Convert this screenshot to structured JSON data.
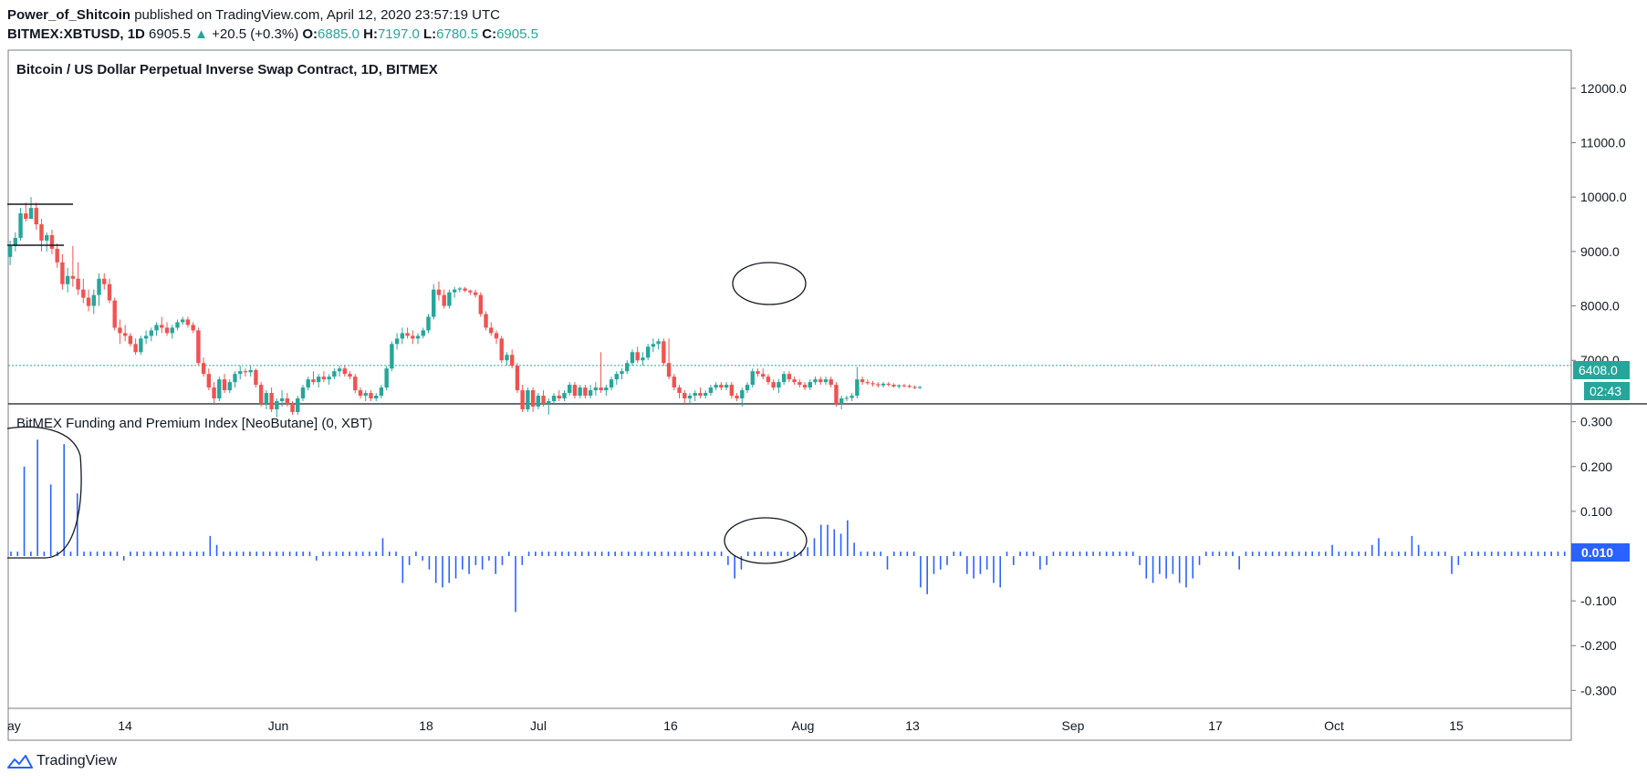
{
  "header": {
    "author": "Power_of_Shitcoin",
    "published_text": "published on TradingView.com, April 12, 2020 23:57:19 UTC",
    "symbol": "BITMEX:XBTUSD",
    "interval": "1D",
    "last": "6905.5",
    "change": "+20.5 (+0.3%)",
    "o_label": "O:",
    "o": "6885.0",
    "h_label": "H:",
    "h": "7197.0",
    "l_label": "L:",
    "l": "6780.5",
    "c_label": "C:",
    "c": "6905.5",
    "up_arrow": "▲"
  },
  "footer": {
    "brand": "TradingView",
    "logo_icon": "tradingview-logo-icon"
  },
  "colors": {
    "up": "#26a69a",
    "down": "#ef5350",
    "funding": "#2962ff",
    "last_line": "#26a69a"
  },
  "chart_data": [
    {
      "type": "candlestick",
      "title": "Bitcoin / US Dollar Perpetual Inverse Swap Contract, 1D, BITMEX",
      "ylim": [
        6200,
        12700
      ],
      "y_ticks": [
        "7000.0",
        "8000.0",
        "9000.0",
        "10000.0",
        "11000.0",
        "12000.0"
      ],
      "last_price_label": "6408.0",
      "countdown_label": "02:43",
      "dotted_line_value": 6905,
      "x_tick_labels": [
        "ay",
        "14",
        "Jun",
        "18",
        "Jul",
        "16",
        "Aug",
        "13",
        "Sep",
        "17",
        "Oct",
        "15"
      ],
      "start_date": "2019-05-10",
      "ohlc": [
        [
          8900,
          9200,
          8750,
          9100
        ],
        [
          9100,
          9350,
          9000,
          9250
        ],
        [
          9250,
          9800,
          9200,
          9700
        ],
        [
          9700,
          9900,
          9550,
          9600
        ],
        [
          9600,
          10000,
          9650,
          9800
        ],
        [
          9800,
          9900,
          9400,
          9500
        ],
        [
          9500,
          9600,
          9000,
          9200
        ],
        [
          9200,
          9350,
          9000,
          9300
        ],
        [
          9300,
          9400,
          8950,
          9050
        ],
        [
          9050,
          9150,
          8700,
          8800
        ],
        [
          8800,
          8950,
          8300,
          8400
        ],
        [
          8400,
          8700,
          8250,
          8550
        ],
        [
          8550,
          9100,
          8350,
          8500
        ],
        [
          8500,
          8800,
          8200,
          8300
        ],
        [
          8300,
          8500,
          8050,
          8150
        ],
        [
          8150,
          8300,
          7900,
          8000
        ],
        [
          8000,
          8300,
          7850,
          8200
        ],
        [
          8200,
          8600,
          8000,
          8500
        ],
        [
          8500,
          8600,
          8300,
          8400
        ],
        [
          8400,
          8500,
          8050,
          8100
        ],
        [
          8100,
          8150,
          7550,
          7600
        ],
        [
          7600,
          7750,
          7300,
          7500
        ],
        [
          7500,
          7650,
          7350,
          7450
        ],
        [
          7450,
          7500,
          7250,
          7300
        ],
        [
          7300,
          7400,
          7100,
          7150
        ],
        [
          7150,
          7450,
          7100,
          7400
        ],
        [
          7400,
          7550,
          7300,
          7450
        ],
        [
          7450,
          7600,
          7350,
          7550
        ],
        [
          7550,
          7700,
          7450,
          7650
        ],
        [
          7650,
          7800,
          7500,
          7600
        ],
        [
          7600,
          7700,
          7450,
          7500
        ],
        [
          7500,
          7650,
          7400,
          7600
        ],
        [
          7600,
          7750,
          7550,
          7700
        ],
        [
          7700,
          7800,
          7650,
          7750
        ],
        [
          7750,
          7800,
          7600,
          7650
        ],
        [
          7650,
          7700,
          7500,
          7550
        ],
        [
          7550,
          7600,
          6900,
          6950
        ],
        [
          6950,
          7050,
          6700,
          6750
        ],
        [
          6750,
          6850,
          6450,
          6500
        ],
        [
          6500,
          6600,
          6200,
          6300
        ],
        [
          6300,
          6700,
          6250,
          6650
        ],
        [
          6650,
          6750,
          6400,
          6450
        ],
        [
          6450,
          6650,
          6400,
          6600
        ],
        [
          6600,
          6800,
          6500,
          6750
        ],
        [
          6750,
          6900,
          6650,
          6800
        ],
        [
          6800,
          6850,
          6700,
          6780
        ],
        [
          6780,
          6900,
          6700,
          6820
        ],
        [
          6820,
          6850,
          6500,
          6550
        ],
        [
          6550,
          6600,
          6150,
          6200
        ],
        [
          6200,
          6450,
          6100,
          6400
        ],
        [
          6400,
          6500,
          6050,
          6100
        ],
        [
          6100,
          6300,
          5950,
          6250
        ],
        [
          6250,
          6450,
          6150,
          6300
        ],
        [
          6300,
          6400,
          6150,
          6200
        ],
        [
          6200,
          6250,
          6000,
          6050
        ],
        [
          6050,
          6350,
          6000,
          6300
        ],
        [
          6300,
          6550,
          6250,
          6500
        ],
        [
          6500,
          6700,
          6450,
          6650
        ],
        [
          6650,
          6800,
          6550,
          6600
        ],
        [
          6600,
          6750,
          6500,
          6700
        ],
        [
          6700,
          6800,
          6600,
          6650
        ],
        [
          6650,
          6750,
          6550,
          6700
        ],
        [
          6700,
          6850,
          6650,
          6800
        ],
        [
          6800,
          6900,
          6700,
          6850
        ],
        [
          6850,
          6900,
          6700,
          6750
        ],
        [
          6750,
          6800,
          6650,
          6700
        ],
        [
          6700,
          6750,
          6400,
          6450
        ],
        [
          6450,
          6500,
          6300,
          6350
        ],
        [
          6350,
          6450,
          6250,
          6400
        ],
        [
          6400,
          6450,
          6250,
          6300
        ],
        [
          6300,
          6400,
          6250,
          6350
        ],
        [
          6350,
          6550,
          6300,
          6500
        ],
        [
          6500,
          6900,
          6450,
          6850
        ],
        [
          6850,
          7350,
          6800,
          7300
        ],
        [
          7300,
          7500,
          7200,
          7400
        ],
        [
          7400,
          7600,
          7300,
          7500
        ],
        [
          7500,
          7600,
          7400,
          7450
        ],
        [
          7450,
          7550,
          7300,
          7400
        ],
        [
          7400,
          7500,
          7300,
          7450
        ],
        [
          7450,
          7600,
          7400,
          7550
        ],
        [
          7550,
          7850,
          7500,
          7800
        ],
        [
          7800,
          8400,
          7750,
          8300
        ],
        [
          8300,
          8450,
          8100,
          8200
        ],
        [
          8200,
          8300,
          7950,
          8000
        ],
        [
          8000,
          8300,
          7950,
          8250
        ],
        [
          8250,
          8350,
          8150,
          8300
        ],
        [
          8300,
          8350,
          8250,
          8320
        ],
        [
          8320,
          8350,
          8250,
          8280
        ],
        [
          8280,
          8300,
          8200,
          8250
        ],
        [
          8250,
          8300,
          8150,
          8200
        ],
        [
          8200,
          8250,
          7800,
          7850
        ],
        [
          7850,
          7900,
          7550,
          7600
        ],
        [
          7600,
          7700,
          7450,
          7500
        ],
        [
          7500,
          7550,
          7300,
          7400
        ],
        [
          7400,
          7450,
          6950,
          7000
        ],
        [
          7000,
          7150,
          6900,
          7100
        ],
        [
          7100,
          7200,
          6850,
          6900
        ],
        [
          6900,
          6950,
          6400,
          6450
        ],
        [
          6450,
          6550,
          6050,
          6100
        ],
        [
          6100,
          6500,
          6050,
          6450
        ],
        [
          6450,
          6500,
          6050,
          6150
        ],
        [
          6150,
          6400,
          6100,
          6350
        ],
        [
          6350,
          6450,
          6150,
          6200
        ],
        [
          6200,
          6300,
          6000,
          6250
        ],
        [
          6250,
          6400,
          6200,
          6350
        ],
        [
          6350,
          6450,
          6250,
          6300
        ],
        [
          6300,
          6450,
          6250,
          6400
        ],
        [
          6400,
          6600,
          6350,
          6550
        ],
        [
          6550,
          6600,
          6300,
          6350
        ],
        [
          6350,
          6550,
          6300,
          6500
        ],
        [
          6500,
          6550,
          6300,
          6350
        ],
        [
          6350,
          6550,
          6300,
          6450
        ],
        [
          6450,
          6600,
          6350,
          6500
        ],
        [
          6500,
          7150,
          6400,
          6450
        ],
        [
          6450,
          6550,
          6350,
          6500
        ],
        [
          6500,
          6700,
          6450,
          6650
        ],
        [
          6650,
          6800,
          6550,
          6750
        ],
        [
          6750,
          6850,
          6650,
          6800
        ],
        [
          6800,
          7000,
          6750,
          6950
        ],
        [
          6950,
          7200,
          6900,
          7150
        ],
        [
          7150,
          7250,
          6950,
          7000
        ],
        [
          7000,
          7150,
          6900,
          7050
        ],
        [
          7050,
          7300,
          7000,
          7250
        ],
        [
          7250,
          7400,
          7150,
          7300
        ],
        [
          7300,
          7400,
          7200,
          7350
        ],
        [
          7350,
          7400,
          6900,
          6950
        ],
        [
          6950,
          7400,
          6650,
          6700
        ],
        [
          6700,
          6750,
          6450,
          6500
        ],
        [
          6500,
          6550,
          6300,
          6400
        ],
        [
          6400,
          6450,
          6200,
          6300
        ],
        [
          6300,
          6400,
          6200,
          6350
        ],
        [
          6350,
          6450,
          6250,
          6400
        ],
        [
          6400,
          6500,
          6300,
          6350
        ],
        [
          6350,
          6450,
          6300,
          6400
        ],
        [
          6400,
          6550,
          6350,
          6500
        ],
        [
          6500,
          6600,
          6450,
          6550
        ],
        [
          6550,
          6600,
          6450,
          6500
        ],
        [
          6500,
          6600,
          6450,
          6550
        ],
        [
          6550,
          6600,
          6300,
          6350
        ],
        [
          6350,
          6400,
          6250,
          6300
        ],
        [
          6300,
          6500,
          6150,
          6450
        ],
        [
          6450,
          6600,
          6400,
          6550
        ],
        [
          6550,
          6850,
          6500,
          6800
        ],
        [
          6800,
          6850,
          6700,
          6750
        ],
        [
          6750,
          6850,
          6650,
          6700
        ],
        [
          6700,
          6750,
          6550,
          6600
        ],
        [
          6600,
          6650,
          6450,
          6500
        ],
        [
          6500,
          6650,
          6400,
          6600
        ],
        [
          6600,
          6800,
          6550,
          6750
        ],
        [
          6750,
          6800,
          6600,
          6650
        ],
        [
          6650,
          6700,
          6550,
          6600
        ],
        [
          6600,
          6650,
          6500,
          6550
        ],
        [
          6550,
          6600,
          6450,
          6500
        ],
        [
          6500,
          6650,
          6450,
          6600
        ],
        [
          6600,
          6700,
          6550,
          6650
        ],
        [
          6650,
          6700,
          6550,
          6600
        ],
        [
          6600,
          6700,
          6550,
          6650
        ],
        [
          6650,
          6700,
          6500,
          6550
        ],
        [
          6550,
          6600,
          6150,
          6200
        ],
        [
          6200,
          6350,
          6100,
          6300
        ],
        [
          6300,
          6350,
          6250,
          6310
        ],
        [
          6310,
          6400,
          6250,
          6350
        ],
        [
          6350,
          6880,
          6300,
          6650
        ],
        [
          6650,
          6700,
          6550,
          6600
        ],
        [
          6600,
          6650,
          6550,
          6580
        ],
        [
          6580,
          6620,
          6520,
          6560
        ],
        [
          6560,
          6600,
          6500,
          6540
        ],
        [
          6540,
          6600,
          6500,
          6570
        ],
        [
          6570,
          6600,
          6520,
          6550
        ],
        [
          6550,
          6580,
          6500,
          6520
        ],
        [
          6520,
          6560,
          6480,
          6540
        ],
        [
          6540,
          6570,
          6500,
          6530
        ],
        [
          6530,
          6560,
          6490,
          6510
        ],
        [
          6510,
          6540,
          6470,
          6500
        ],
        [
          6500,
          6530,
          6470,
          6510
        ]
      ]
    },
    {
      "type": "bar",
      "title": "BitMEX Funding and Premium Index [NeoButane] (0, XBT)",
      "ylim": [
        -0.34,
        0.34
      ],
      "y_ticks": [
        "-0.300",
        "-0.200",
        "-0.100",
        "0.100",
        "0.200",
        "0.300"
      ],
      "last_value_label": "0.010",
      "values": [
        0.01,
        0.01,
        0.2,
        0.01,
        0.26,
        0.01,
        0.16,
        0.01,
        0.25,
        0.01,
        0.14,
        0.01,
        0.01,
        0.01,
        0.01,
        0.01,
        0.01,
        -0.01,
        0.01,
        0.01,
        0.01,
        0.01,
        0.01,
        0.01,
        0.01,
        0.01,
        0.01,
        0.01,
        0.01,
        0.01,
        0.045,
        0.025,
        0.01,
        0.01,
        0.01,
        0.01,
        0.01,
        0.01,
        0.01,
        0.01,
        0.01,
        0.01,
        0.01,
        0.01,
        0.01,
        0.01,
        -0.01,
        0.01,
        0.01,
        0.01,
        0.01,
        0.01,
        0.01,
        0.01,
        0.01,
        0.01,
        0.04,
        0.01,
        0.01,
        -0.06,
        -0.02,
        0.01,
        -0.01,
        -0.03,
        -0.06,
        -0.07,
        -0.06,
        -0.05,
        -0.03,
        -0.04,
        -0.02,
        -0.03,
        -0.01,
        -0.04,
        -0.02,
        0.01,
        -0.125,
        -0.02,
        0.01,
        0.01,
        0.01,
        0.01,
        0.01,
        0.01,
        0.01,
        0.01,
        0.01,
        0.01,
        0.01,
        0.01,
        0.01,
        0.01,
        0.01,
        0.01,
        0.01,
        0.01,
        0.01,
        0.01,
        0.01,
        0.01,
        0.01,
        0.01,
        0.01,
        0.01,
        0.01,
        0.01,
        0.01,
        0.01,
        -0.02,
        -0.05,
        -0.03,
        0.01,
        0.01,
        0.01,
        0.01,
        0.01,
        0.01,
        0.01,
        0.01,
        0.01,
        0.02,
        0.04,
        0.07,
        0.07,
        0.06,
        0.05,
        0.08,
        0.03,
        0.01,
        0.01,
        0.01,
        0.01,
        -0.03,
        0.01,
        0.01,
        0.01,
        0.01,
        -0.07,
        -0.085,
        -0.04,
        -0.03,
        -0.02,
        0.01,
        0.01,
        -0.04,
        -0.05,
        -0.04,
        -0.03,
        -0.06,
        -0.07,
        0.01,
        -0.02,
        0.01,
        0.01,
        0.01,
        -0.03,
        -0.02,
        0.01,
        0.01,
        0.01,
        0.01,
        0.01,
        0.01,
        0.01,
        0.01,
        0.01,
        0.01,
        0.01,
        0.01,
        0.01,
        -0.02,
        -0.05,
        -0.06,
        -0.04,
        -0.05,
        -0.04,
        -0.06,
        -0.07,
        -0.05,
        -0.02,
        0.01,
        0.01,
        0.01,
        0.01,
        0.01,
        -0.03,
        0.01,
        0.01,
        0.01,
        0.01,
        0.01,
        0.01,
        0.01,
        0.01,
        0.01,
        0.01,
        0.01,
        0.01,
        0.01,
        0.025,
        0.01,
        0.01,
        0.01,
        0.01,
        0.01,
        0.025,
        0.04,
        0.01,
        0.01,
        0.01,
        0.01,
        0.045,
        0.025,
        0.01,
        0.01,
        0.01,
        0.01,
        -0.04,
        -0.02,
        0.01,
        0.01,
        0.01,
        0.01,
        0.01,
        0.01,
        0.01,
        0.01,
        0.01,
        0.01,
        0.01,
        0.01,
        0.01,
        0.01,
        0.01,
        0.01
      ]
    }
  ]
}
